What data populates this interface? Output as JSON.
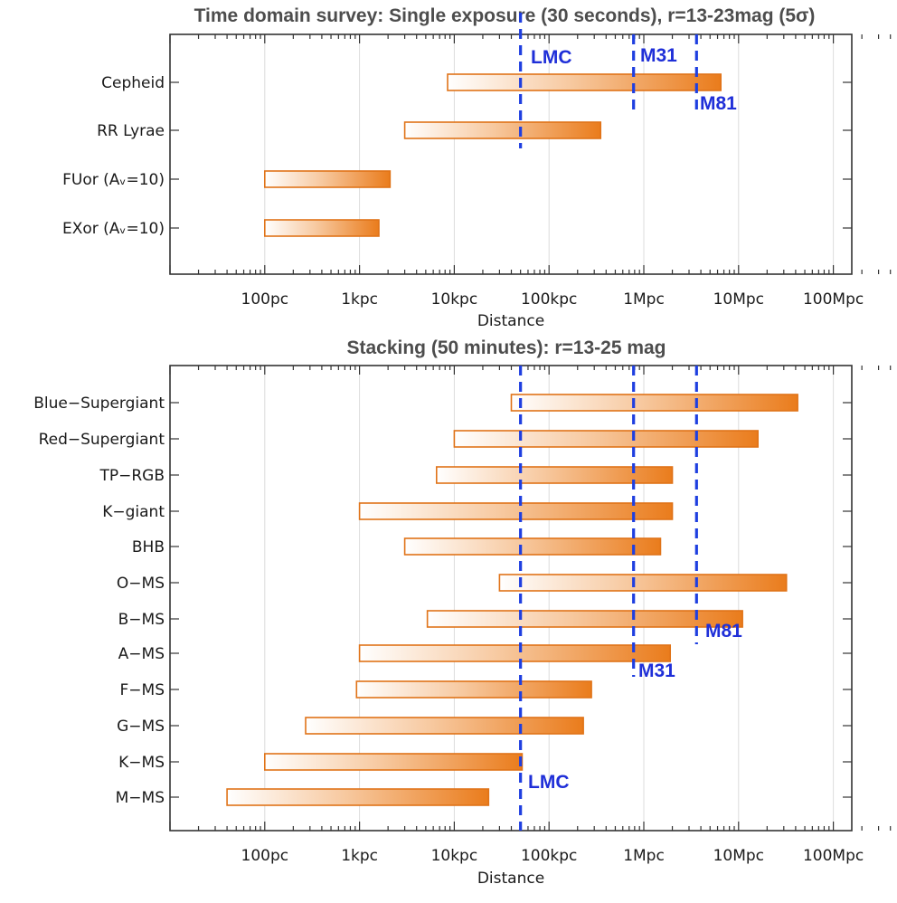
{
  "chart_data": [
    {
      "type": "bar",
      "orientation": "horizontal-range",
      "title": "Time domain survey:  Single exposure (30 seconds),  r=13-23mag (5σ)",
      "xlabel": "Distance",
      "xscale": "log",
      "xlim_pc": [
        10,
        1000000000
      ],
      "grid": true,
      "x_ticks": [
        "100pc",
        "1kpc",
        "10kpc",
        "100kpc",
        "1Mpc",
        "10Mpc",
        "100Mpc"
      ],
      "categories": [
        "Cepheid",
        "RR Lyrae",
        "FUor (Aᵥ=10)",
        "EXor (Aᵥ=10)"
      ],
      "ranges_pc": [
        [
          8500,
          6500000
        ],
        [
          3000,
          350000
        ],
        [
          100,
          2100
        ],
        [
          100,
          1600
        ]
      ],
      "reference_lines": [
        {
          "label": "LMC",
          "x_pc": 50000
        },
        {
          "label": "M31",
          "x_pc": 780000
        },
        {
          "label": "M81",
          "x_pc": 3600000
        }
      ],
      "bar_color": "#ef8a2e"
    },
    {
      "type": "bar",
      "orientation": "horizontal-range",
      "title": "Stacking (50 minutes):   r=13-25 mag",
      "xlabel": "Distance",
      "xscale": "log",
      "xlim_pc": [
        10,
        1000000000
      ],
      "grid": true,
      "x_ticks": [
        "100pc",
        "1kpc",
        "10kpc",
        "100kpc",
        "1Mpc",
        "10Mpc",
        "100Mpc"
      ],
      "categories": [
        "Blue−Supergiant",
        "Red−Supergiant",
        "TP−RGB",
        "K−giant",
        "BHB",
        "O−MS",
        "B−MS",
        "A−MS",
        "F−MS",
        "G−MS",
        "K−MS",
        "M−MS"
      ],
      "ranges_pc": [
        [
          40000,
          42000000
        ],
        [
          10000,
          16000000
        ],
        [
          6500,
          2000000
        ],
        [
          1000,
          2000000
        ],
        [
          3000,
          1500000
        ],
        [
          30000,
          32000000
        ],
        [
          5200,
          11000000
        ],
        [
          1000,
          1900000
        ],
        [
          930,
          280000
        ],
        [
          270,
          230000
        ],
        [
          100,
          52000
        ],
        [
          40,
          23000
        ]
      ],
      "reference_lines": [
        {
          "label": "LMC",
          "x_pc": 50000
        },
        {
          "label": "M31",
          "x_pc": 780000
        },
        {
          "label": "M81",
          "x_pc": 3600000
        }
      ],
      "bar_color": "#ef8a2e"
    }
  ]
}
